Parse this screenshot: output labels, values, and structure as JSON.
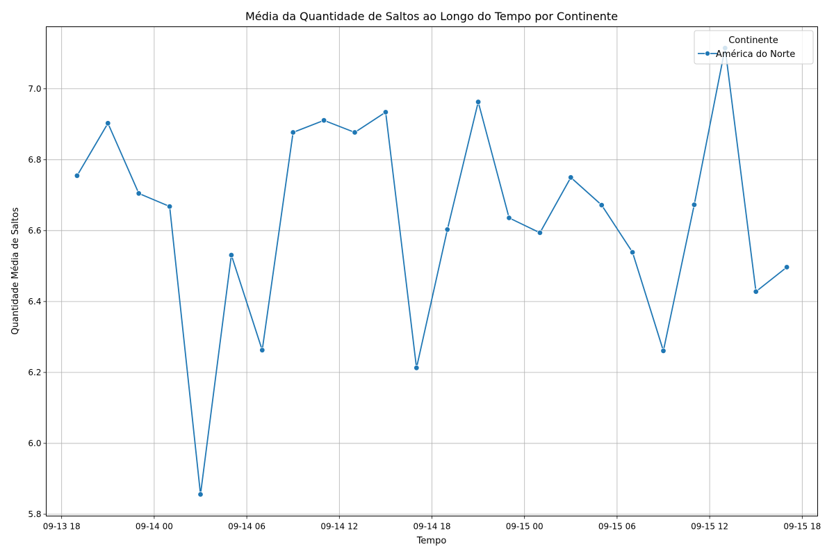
{
  "chart_data": {
    "type": "line",
    "title": "Média da Quantidade de Saltos ao Longo do Tempo por Continente",
    "xlabel": "Tempo",
    "ylabel": "Quantidade Média de Saltos",
    "x_tick_labels": [
      "09-13 18",
      "09-14 00",
      "09-14 06",
      "09-14 12",
      "09-14 18",
      "09-15 00",
      "09-15 06",
      "09-15 12",
      "09-15 18"
    ],
    "y_tick_labels": [
      "5.8",
      "6.0",
      "6.2",
      "6.4",
      "6.6",
      "6.8",
      "7.0"
    ],
    "y_ticks": [
      5.8,
      6.0,
      6.2,
      6.4,
      6.6,
      6.8,
      7.0
    ],
    "ylim": [
      5.795,
      7.175
    ],
    "xlim": [
      "2024-09-13 17:00",
      "2024-09-15 19:00"
    ],
    "x_ticks": [
      "2024-09-13 18:00",
      "2024-09-14 00:00",
      "2024-09-14 06:00",
      "2024-09-14 12:00",
      "2024-09-14 18:00",
      "2024-09-15 00:00",
      "2024-09-15 06:00",
      "2024-09-15 12:00",
      "2024-09-15 18:00"
    ],
    "grid": true,
    "legend": {
      "title": "Continente",
      "position": "top-right"
    },
    "series": [
      {
        "name": "América do Norte",
        "color": "#1f77b4",
        "marker": "circle",
        "x": [
          "2024-09-13 19:00",
          "2024-09-13 21:00",
          "2024-09-13 23:00",
          "2024-09-14 01:00",
          "2024-09-14 03:00",
          "2024-09-14 05:00",
          "2024-09-14 07:00",
          "2024-09-14 09:00",
          "2024-09-14 11:00",
          "2024-09-14 13:00",
          "2024-09-14 15:00",
          "2024-09-14 17:00",
          "2024-09-14 19:00",
          "2024-09-14 21:00",
          "2024-09-14 23:00",
          "2024-09-15 01:00",
          "2024-09-15 03:00",
          "2024-09-15 05:00",
          "2024-09-15 07:00",
          "2024-09-15 09:00",
          "2024-09-15 11:00",
          "2024-09-15 13:00",
          "2024-09-15 15:00",
          "2024-09-15 17:00"
        ],
        "y": [
          6.755,
          6.903,
          6.705,
          6.668,
          5.856,
          6.531,
          6.263,
          6.877,
          6.911,
          6.877,
          6.934,
          6.213,
          6.603,
          6.963,
          6.636,
          6.594,
          6.75,
          6.672,
          6.539,
          6.261,
          6.673,
          7.115,
          6.428,
          6.497
        ]
      }
    ]
  }
}
